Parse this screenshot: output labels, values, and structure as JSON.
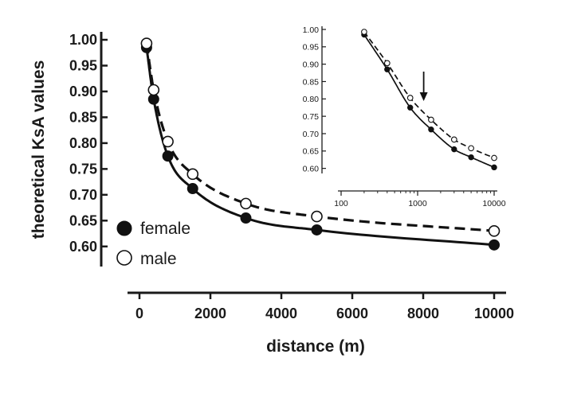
{
  "chart_data": [
    {
      "type": "scatter",
      "xlabel": "distance (m)",
      "ylabel": "theoretical KsA values",
      "xlim": [
        0,
        10000
      ],
      "ylim": [
        0.575,
        1.0
      ],
      "x_scale": "linear",
      "grid": false,
      "legend_position": "bottom-left",
      "x_ticks": [
        0,
        2000,
        4000,
        6000,
        8000,
        10000
      ],
      "y_ticks": [
        0.6,
        0.65,
        0.7,
        0.75,
        0.8,
        0.85,
        0.9,
        0.95,
        1.0
      ],
      "x_tick_labels": [
        "0",
        "2000",
        "4000",
        "6000",
        "8000",
        "10000"
      ],
      "y_tick_labels": [
        "0.60",
        "0.65",
        "0.70",
        "0.75",
        "0.80",
        "0.85",
        "0.90",
        "0.95",
        "1.00"
      ],
      "series": [
        {
          "name": "female",
          "marker": "filled-circle",
          "line": "solid",
          "color": "#111111",
          "x": [
            200,
            400,
            800,
            1500,
            3000,
            5000,
            10000
          ],
          "y": [
            0.985,
            0.885,
            0.775,
            0.712,
            0.655,
            0.632,
            0.603
          ]
        },
        {
          "name": "male",
          "marker": "open-circle",
          "line": "dashed",
          "color": "#111111",
          "x": [
            200,
            400,
            800,
            1500,
            3000,
            5000,
            10000
          ],
          "y": [
            0.993,
            0.903,
            0.803,
            0.74,
            0.683,
            0.658,
            0.63
          ]
        }
      ]
    },
    {
      "type": "scatter",
      "x_scale": "log",
      "xlim": [
        100,
        10000
      ],
      "ylim": [
        0.59,
        1.0
      ],
      "grid": false,
      "annotation": "downward arrow near x = 1200",
      "arrow_x": 1200,
      "x_ticks": [
        100,
        1000,
        10000
      ],
      "y_ticks": [
        0.6,
        0.65,
        0.7,
        0.75,
        0.8,
        0.85,
        0.9,
        0.95,
        1.0
      ],
      "x_tick_labels": [
        "100",
        "1000",
        "10000"
      ],
      "y_tick_labels": [
        "0.60",
        "0.65",
        "0.70",
        "0.75",
        "0.80",
        "0.85",
        "0.90",
        "0.95",
        "1.00"
      ],
      "series": [
        {
          "name": "female",
          "marker": "filled-circle",
          "line": "solid",
          "color": "#111111",
          "x": [
            200,
            400,
            800,
            1500,
            3000,
            5000,
            10000
          ],
          "y": [
            0.985,
            0.885,
            0.775,
            0.712,
            0.655,
            0.632,
            0.603
          ]
        },
        {
          "name": "male",
          "marker": "open-circle",
          "line": "dashed",
          "color": "#111111",
          "x": [
            200,
            400,
            800,
            1500,
            3000,
            5000,
            10000
          ],
          "y": [
            0.993,
            0.903,
            0.803,
            0.74,
            0.683,
            0.658,
            0.63
          ]
        }
      ]
    }
  ]
}
